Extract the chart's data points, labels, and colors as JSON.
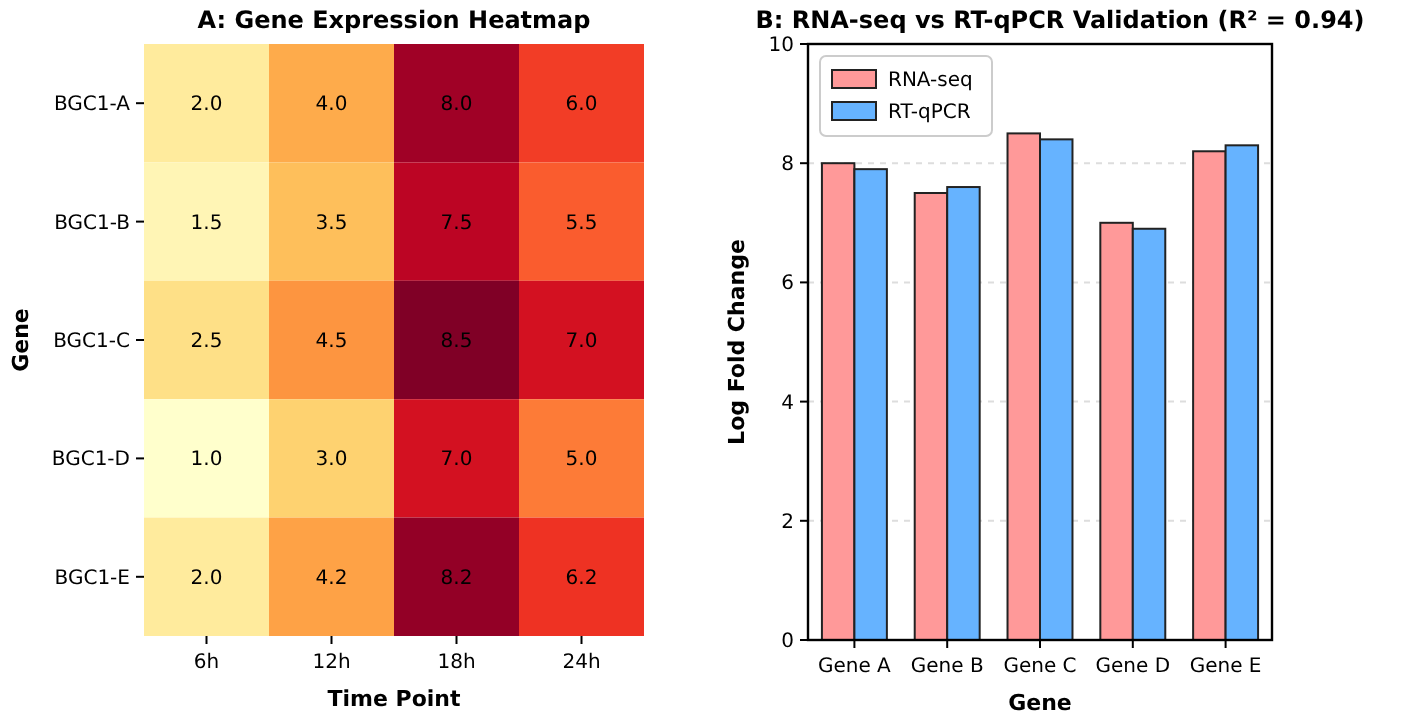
{
  "chart_data": [
    {
      "type": "heatmap",
      "title": "A: Gene Expression Heatmap",
      "xlabel": "Time Point",
      "ylabel": "Gene",
      "categories": [
        "6h",
        "12h",
        "18h",
        "24h"
      ],
      "y_categories": [
        "BGC1-A",
        "BGC1-B",
        "BGC1-C",
        "BGC1-D",
        "BGC1-E"
      ],
      "cells": [
        [
          2.0,
          4.0,
          8.0,
          6.0
        ],
        [
          1.5,
          3.5,
          7.5,
          5.5
        ],
        [
          2.5,
          4.5,
          8.5,
          7.0
        ],
        [
          1.0,
          3.0,
          7.0,
          5.0
        ],
        [
          2.0,
          4.2,
          8.2,
          6.2
        ]
      ],
      "cell_labels": [
        [
          "2.0",
          "4.0",
          "8.0",
          "6.0"
        ],
        [
          "1.5",
          "3.5",
          "7.5",
          "5.5"
        ],
        [
          "2.5",
          "4.5",
          "8.5",
          "7.0"
        ],
        [
          "1.0",
          "3.0",
          "7.0",
          "5.0"
        ],
        [
          "2.0",
          "4.2",
          "8.2",
          "6.2"
        ]
      ],
      "data_labels": true
    },
    {
      "type": "bar",
      "title": "B: RNA-seq vs RT-qPCR Validation (R² = 0.94)",
      "xlabel": "Gene",
      "ylabel": "Log Fold Change",
      "categories": [
        "Gene A",
        "Gene B",
        "Gene C",
        "Gene D",
        "Gene E"
      ],
      "series": [
        {
          "name": "RNA-seq",
          "color": "#ff9999",
          "values": [
            8.0,
            7.5,
            8.5,
            7.0,
            8.2
          ]
        },
        {
          "name": "RT-qPCR",
          "color": "#66b3ff",
          "values": [
            7.9,
            7.6,
            8.4,
            6.9,
            8.3
          ]
        }
      ],
      "ylim": [
        0,
        10
      ],
      "yticks": [
        0,
        2,
        4,
        6,
        8,
        10
      ],
      "grid": "y",
      "legend": "top left"
    }
  ]
}
